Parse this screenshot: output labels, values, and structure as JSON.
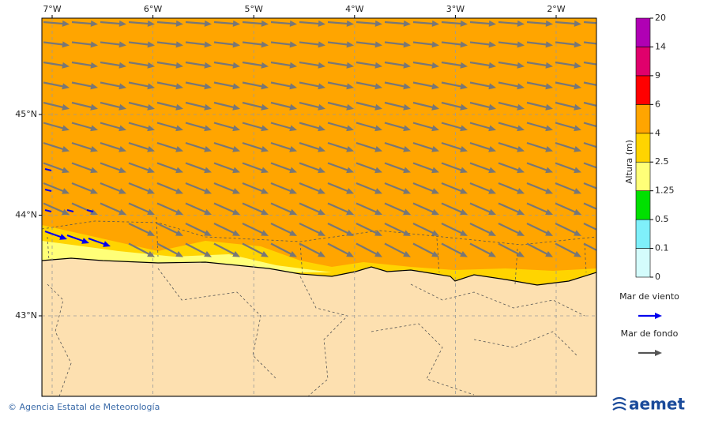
{
  "map": {
    "lon_ticks": [
      {
        "value": -7,
        "label": "7°W"
      },
      {
        "value": -6,
        "label": "6°W"
      },
      {
        "value": -5,
        "label": "5°W"
      },
      {
        "value": -4,
        "label": "4°W"
      },
      {
        "value": -3,
        "label": "3°W"
      },
      {
        "value": -2,
        "label": "2°W"
      }
    ],
    "lat_ticks": [
      {
        "value": 45,
        "label": "45°N"
      },
      {
        "value": 44,
        "label": "44°N"
      },
      {
        "value": 43,
        "label": "43°N"
      }
    ]
  },
  "colorbar": {
    "label": "Altura (m)",
    "levels": [
      0,
      0.1,
      0.5,
      1.25,
      2.5,
      4,
      6,
      9,
      14,
      20
    ],
    "colors": [
      "#d4fcfc",
      "#7ff0fa",
      "#00e000",
      "#ffff78",
      "#ffd400",
      "#ffa500",
      "#ff0000",
      "#e0006c",
      "#b000b4"
    ]
  },
  "legend": [
    {
      "label": "Mar de viento",
      "color": "#0000ee"
    },
    {
      "label": "Mar de fondo",
      "color": "#555555"
    }
  ],
  "footer": {
    "credit": "© Agencia Estatal de Meteorología",
    "logo": "aemet"
  }
}
